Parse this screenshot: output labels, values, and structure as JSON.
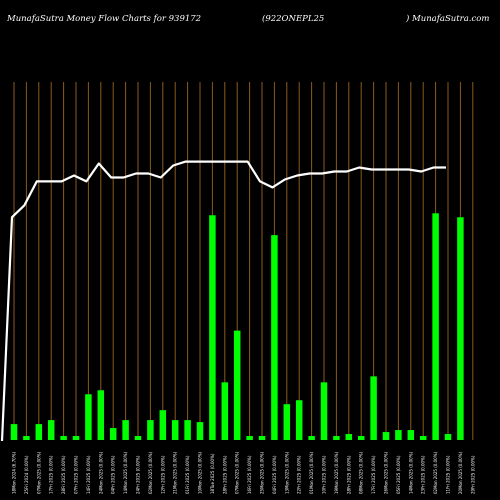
{
  "header": {
    "site_title": "MunafaSutra  Money Flow  Charts for 939172",
    "symbol": "(922ONEPL25",
    "site_url": ") MunafaSutra.com"
  },
  "colors": {
    "background": "#000000",
    "grid": "#8B5A1E",
    "bar": "#00FF00",
    "line": "#FFFFFF",
    "text": "#FFFFFF"
  },
  "chart_data": {
    "type": "bar",
    "title": "MunafaSutra  Money Flow  Charts for 939172",
    "grid": true,
    "categories": [
      "18Mon 2024 (6.70%)",
      "25Fri 2024 (0.00%)",
      "07Mon 2025 (0.00%)",
      "17Fri 2025 (0.00%)",
      "28Fri 2025 (0.00%)",
      "07Fri 2025 (0.00%)",
      "14Fri 2025 (0.00%)",
      "24Mon 2025 (0.00%)",
      "04Fri 2025 (0.00%)",
      "14Mon 2025 (0.00%)",
      "24Fri 2025 (0.00%)",
      "02Mon 2025 (0.00%)",
      "12Fri 2025 (0.00%)",
      "21Mon 2025 (0.00%)",
      "01Fri 2025 (0.00%)",
      "10Mon 2025 (0.00%)",
      "18Tue 2025 (0.00%)",
      "28Fri 2025 (0.00%)",
      "07Mon 2025 (0.00%)",
      "16Fri 2025 (0.00%)",
      "25Mon 2025 (0.00%)",
      "04Fri 2025 (0.00%)",
      "13Mon 2025 (0.00%)",
      "22Fri 2025 (0.00%)",
      "01Mon 2025 (0.00%)",
      "10Fri 2025 (0.00%)",
      "19Mon 2025 (0.00%)",
      "28Fri 2025 (0.00%)",
      "08Mon 2025 (0.00%)",
      "17Fri 2025 (0.00%)",
      "26Mon 2025 (0.00%)",
      "05Fri 2025 (0.00%)",
      "14Mon 2025 (0.00%)",
      "23Fri 2025 (0.00%)",
      "02Mon 2025 (0.00%)",
      "11Fri 2025 (0.00%)",
      "20Mon 2025 (0.00%)",
      "29Fri 2025 (0.00%)"
    ],
    "series": [
      {
        "type": "bar",
        "values": [
          8,
          2,
          8,
          10,
          2,
          2,
          23,
          25,
          6,
          10,
          2,
          10,
          15,
          10,
          10,
          9,
          113,
          29,
          55,
          2,
          2,
          103,
          18,
          20,
          2,
          29,
          2,
          3,
          2,
          32,
          4,
          5,
          5,
          2,
          114,
          3,
          112,
          0
        ]
      },
      {
        "type": "line",
        "values": [
          112,
          118,
          130,
          130,
          130,
          133,
          130,
          139,
          132,
          132,
          134,
          134,
          132,
          138,
          140,
          140,
          140,
          140,
          140,
          140,
          130,
          127,
          131,
          133,
          134,
          134,
          135,
          135,
          137,
          136,
          136,
          136,
          136,
          135,
          137,
          137,
          0,
          0
        ]
      }
    ],
    "ylim": [
      0,
      180
    ]
  }
}
